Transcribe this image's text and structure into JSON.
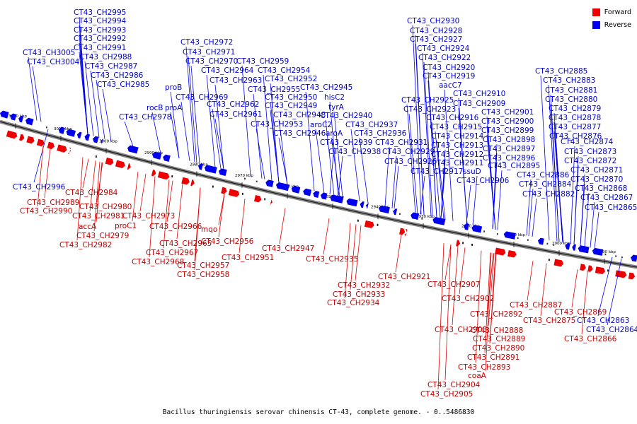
{
  "caption": "Bacillus thuringiensis serovar chinensis CT-43, complete genome. - 0..5486830",
  "legend": [
    {
      "label": "Forward",
      "color": "#ee0000"
    },
    {
      "label": "Reverse",
      "color": "#0000ee"
    }
  ],
  "ticks": [
    {
      "label": "3020 kbp",
      "kbp": 3020
    },
    {
      "label": "3010 kbp",
      "kbp": 3010
    },
    {
      "label": "3000 kbp",
      "kbp": 3000
    },
    {
      "label": "2990 kbp",
      "kbp": 2990
    },
    {
      "label": "2980 kbp",
      "kbp": 2980
    },
    {
      "label": "2970 kbp",
      "kbp": 2970
    },
    {
      "label": "2960 kbp",
      "kbp": 2960
    },
    {
      "label": "2950 kbp",
      "kbp": 2950
    },
    {
      "label": "2940 kbp",
      "kbp": 2940
    },
    {
      "label": "2930 kbp",
      "kbp": 2930
    },
    {
      "label": "2920 kbp",
      "kbp": 2920
    },
    {
      "label": "2910 kbp",
      "kbp": 2910
    },
    {
      "label": "2900 kbp",
      "kbp": 2900
    },
    {
      "label": "2890 kbp",
      "kbp": 2890
    }
  ],
  "reverse_labels": [
    "CT43_CH2995",
    "CT43_CH2994",
    "CT43_CH2993",
    "CT43_CH2992",
    "CT43_CH2991",
    "CT43_CH2988",
    "CT43_CH2987",
    "CT43_CH2986",
    "CT43_CH2985",
    "CT43_CH3005",
    "CT43_CH3004",
    "CT43_CH2978",
    "rocB",
    "proA",
    "proB",
    "CT43_CH2969",
    "CT43_CH2972",
    "CT43_CH2971",
    "CT43_CH2970",
    "CT43_CH2964",
    "CT43_CH2963",
    "CT43_CH2962",
    "CT43_CH2961",
    "CT43_CH2959",
    "CT43_CH2954",
    "CT43_CH2952",
    "CT43_CH2955",
    "CT43_CH2950",
    "CT43_CH2949",
    "CT43_CH2948",
    "CT43_CH2953",
    "CT43_CH2946",
    "CT43_CH2945",
    "hisC2",
    "tyrA",
    "CT43_CH2940",
    "aroC2",
    "aroA",
    "CT43_CH2939",
    "CT43_CH2938",
    "CT43_CH2937",
    "CT43_CH2936",
    "CT43_CH2930",
    "CT43_CH2928",
    "CT43_CH2927",
    "CT43_CH2924",
    "CT43_CH2922",
    "CT43_CH2920",
    "CT43_CH2919",
    "aacC7",
    "CT43_CH2925",
    "CT43_CH2923",
    "CT43_CH2916",
    "CT43_CH2915",
    "CT43_CH2914",
    "CT43_CH2913",
    "CT43_CH2912",
    "CT43_CH2911",
    "CT43_CH2931",
    "CT43_CH2929",
    "CT43_CH2926",
    "CT43_CH2917",
    "ssuD",
    "CT43_CH2910",
    "CT43_CH2909",
    "CT43_CH2901",
    "CT43_CH2900",
    "CT43_CH2899",
    "CT43_CH2898",
    "CT43_CH2897",
    "CT43_CH2896",
    "CT43_CH2895",
    "CT43_CH2906",
    "CT43_CH2885",
    "CT43_CH2883",
    "CT43_CH2881",
    "CT43_CH2880",
    "CT43_CH2879",
    "CT43_CH2878",
    "CT43_CH2877",
    "CT43_CH2876",
    "CT43_CH2874",
    "CT43_CH2873",
    "CT43_CH2872",
    "CT43_CH2871",
    "CT43_CH2870",
    "CT43_CH2868",
    "CT43_CH2867",
    "CT43_CH2886",
    "CT43_CH2884",
    "CT43_CH2882",
    "CT43_CH2865",
    "CT43_CH2996",
    "CT43_CH2863",
    "CT43_CH2864"
  ],
  "forward_labels": [
    "CT43_CH2984",
    "CT43_CH2989",
    "CT43_CH2980",
    "CT43_CH2990",
    "CT43_CH2981",
    "accA",
    "proC1",
    "CT43_CH2973",
    "CT43_CH2979",
    "CT43_CH2982",
    "CT43_CH2966",
    "mqo",
    "CT43_CH2965",
    "CT43_CH2956",
    "CT43_CH2967",
    "CT43_CH2968",
    "CT43_CH2957",
    "CT43_CH2958",
    "CT43_CH2951",
    "CT43_CH2947",
    "CT43_CH2935",
    "CT43_CH2932",
    "CT43_CH2933",
    "CT43_CH2934",
    "CT43_CH2921",
    "CT43_CH2907",
    "CT43_CH2902",
    "CT43_CH2887",
    "CT43_CH2892",
    "CT43_CH2903",
    "CT43_CH2888",
    "CT43_CH2889",
    "CT43_CH2890",
    "CT43_CH2891",
    "CT43_CH2893",
    "coaA",
    "CT43_CH2904",
    "CT43_CH2905",
    "CT43_CH2875",
    "CT43_CH2869",
    "CT43_CH2866"
  ]
}
